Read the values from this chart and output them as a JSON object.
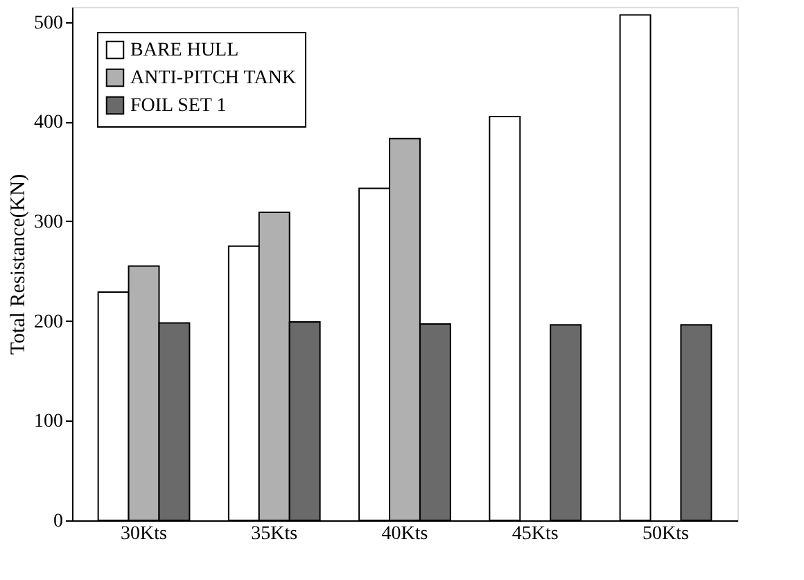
{
  "chart_data": {
    "type": "bar",
    "ylabel": "Total Resistance(KN)",
    "categories": [
      "30Kts",
      "35Kts",
      "40Kts",
      "45Kts",
      "50Kts"
    ],
    "series": [
      {
        "name": "BARE HULL",
        "color": "#ffffff",
        "values": [
          229,
          275,
          333,
          405,
          507
        ]
      },
      {
        "name": "ANTI-PITCH TANK",
        "color": "#b0b0b0",
        "values": [
          255,
          309,
          383,
          null,
          null
        ]
      },
      {
        "name": "FOIL SET 1",
        "color": "#6a6a6a",
        "values": [
          198,
          199,
          197,
          196,
          196
        ]
      }
    ],
    "ylim": [
      0,
      515
    ],
    "yticks": [
      0,
      100,
      200,
      300,
      400,
      500
    ],
    "grid": false,
    "legend": "top left"
  }
}
